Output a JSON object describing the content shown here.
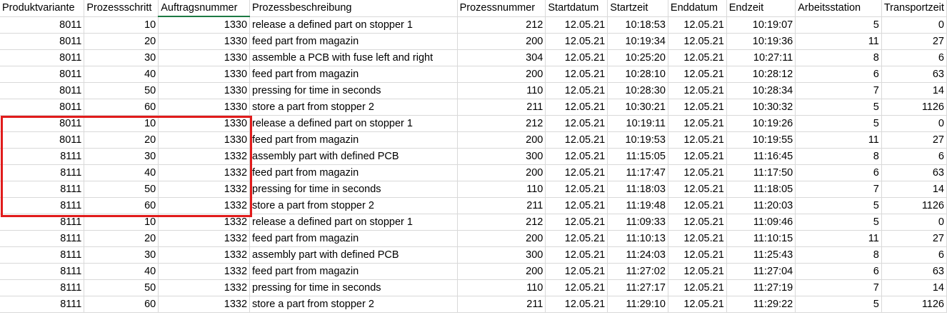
{
  "columns": [
    {
      "label": "Produktvariante",
      "align": "num"
    },
    {
      "label": "Prozessschritt",
      "align": "num"
    },
    {
      "label": "Auftragsnummer",
      "align": "num"
    },
    {
      "label": "Prozessbeschreibung",
      "align": "txt"
    },
    {
      "label": "Prozessnummer",
      "align": "num"
    },
    {
      "label": "Startdatum",
      "align": "num"
    },
    {
      "label": "Startzeit",
      "align": "num"
    },
    {
      "label": "Enddatum",
      "align": "num"
    },
    {
      "label": "Endzeit",
      "align": "num"
    },
    {
      "label": "Arbeitsstation",
      "align": "num"
    },
    {
      "label": "Transportzeit",
      "align": "num"
    }
  ],
  "rows": [
    [
      "8011",
      "10",
      "1330",
      "release a defined part on stopper 1",
      "212",
      "12.05.21",
      "10:18:53",
      "12.05.21",
      "10:19:07",
      "5",
      "0"
    ],
    [
      "8011",
      "20",
      "1330",
      "feed part from magazin",
      "200",
      "12.05.21",
      "10:19:34",
      "12.05.21",
      "10:19:36",
      "11",
      "27"
    ],
    [
      "8011",
      "30",
      "1330",
      "assemble a PCB with fuse left and right",
      "304",
      "12.05.21",
      "10:25:20",
      "12.05.21",
      "10:27:11",
      "8",
      "6"
    ],
    [
      "8011",
      "40",
      "1330",
      "feed part from magazin",
      "200",
      "12.05.21",
      "10:28:10",
      "12.05.21",
      "10:28:12",
      "6",
      "63"
    ],
    [
      "8011",
      "50",
      "1330",
      "pressing for time in seconds",
      "110",
      "12.05.21",
      "10:28:30",
      "12.05.21",
      "10:28:34",
      "7",
      "14"
    ],
    [
      "8011",
      "60",
      "1330",
      "store a part from stopper 2",
      "211",
      "12.05.21",
      "10:30:21",
      "12.05.21",
      "10:30:32",
      "5",
      "1126"
    ],
    [
      "8011",
      "10",
      "1330",
      "release a defined part on stopper 1",
      "212",
      "12.05.21",
      "10:19:11",
      "12.05.21",
      "10:19:26",
      "5",
      "0"
    ],
    [
      "8011",
      "20",
      "1330",
      "feed part from magazin",
      "200",
      "12.05.21",
      "10:19:53",
      "12.05.21",
      "10:19:55",
      "11",
      "27"
    ],
    [
      "8111",
      "30",
      "1332",
      "assembly part with defined PCB",
      "300",
      "12.05.21",
      "11:15:05",
      "12.05.21",
      "11:16:45",
      "8",
      "6"
    ],
    [
      "8111",
      "40",
      "1332",
      "feed part from magazin",
      "200",
      "12.05.21",
      "11:17:47",
      "12.05.21",
      "11:17:50",
      "6",
      "63"
    ],
    [
      "8111",
      "50",
      "1332",
      "pressing for time in seconds",
      "110",
      "12.05.21",
      "11:18:03",
      "12.05.21",
      "11:18:05",
      "7",
      "14"
    ],
    [
      "8111",
      "60",
      "1332",
      "store a part from stopper 2",
      "211",
      "12.05.21",
      "11:19:48",
      "12.05.21",
      "11:20:03",
      "5",
      "1126"
    ],
    [
      "8111",
      "10",
      "1332",
      "release a defined part on stopper 1",
      "212",
      "12.05.21",
      "11:09:33",
      "12.05.21",
      "11:09:46",
      "5",
      "0"
    ],
    [
      "8111",
      "20",
      "1332",
      "feed part from magazin",
      "200",
      "12.05.21",
      "11:10:13",
      "12.05.21",
      "11:10:15",
      "11",
      "27"
    ],
    [
      "8111",
      "30",
      "1332",
      "assembly part with defined PCB",
      "300",
      "12.05.21",
      "11:24:03",
      "12.05.21",
      "11:25:43",
      "8",
      "6"
    ],
    [
      "8111",
      "40",
      "1332",
      "feed part from magazin",
      "200",
      "12.05.21",
      "11:27:02",
      "12.05.21",
      "11:27:04",
      "6",
      "63"
    ],
    [
      "8111",
      "50",
      "1332",
      "pressing for time in seconds",
      "110",
      "12.05.21",
      "11:27:17",
      "12.05.21",
      "11:27:19",
      "7",
      "14"
    ],
    [
      "8111",
      "60",
      "1332",
      "store a part from stopper 2",
      "211",
      "12.05.21",
      "11:29:10",
      "12.05.21",
      "11:29:22",
      "5",
      "1126"
    ]
  ],
  "active_column_index": 2,
  "selection_color": "#e11b1b",
  "selection_rows": [
    6,
    11
  ],
  "selection_cols": [
    0,
    2
  ]
}
